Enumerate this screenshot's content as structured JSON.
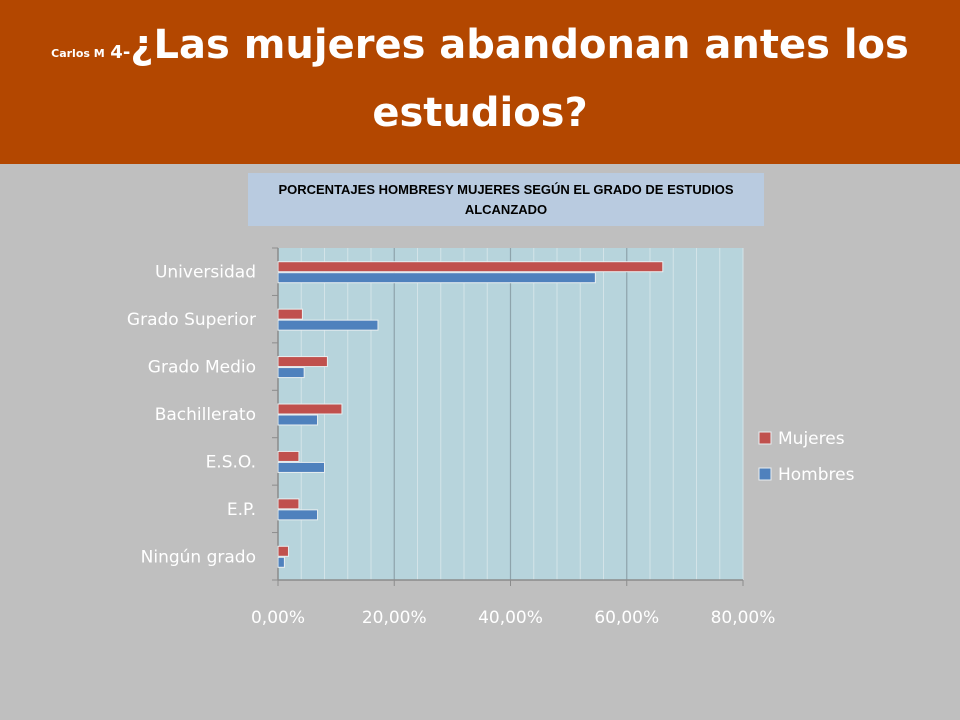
{
  "header": {
    "author": "Carlos M",
    "number": "4-",
    "title_part1": "¿Las mujeres abandonan antes los",
    "title_part2": "estudios?"
  },
  "colors": {
    "header_bg": "#b34700",
    "slide_bg": "#bfbfbf",
    "plot_bg": "#b7d4dc",
    "mujeres": "#c0504d",
    "hombres": "#4f81bd"
  },
  "chart_data": {
    "type": "bar",
    "orientation": "horizontal",
    "title": "PORCENTAJES HOMBRESY MUJERES SEGÚN EL GRADO DE ESTUDIOS ALCANZADO",
    "categories": [
      "Universidad",
      "Grado Superior",
      "Grado Medio",
      "Bachillerato",
      "E.S.O.",
      "E.P.",
      "Ningún grado"
    ],
    "series": [
      {
        "name": "Mujeres",
        "values": [
          66.2,
          4.2,
          8.5,
          11.0,
          3.6,
          3.6,
          1.8
        ]
      },
      {
        "name": "Hombres",
        "values": [
          54.6,
          17.2,
          4.5,
          6.8,
          8.0,
          6.8,
          1.1
        ]
      }
    ],
    "xlim": [
      0,
      80
    ],
    "x_ticks": [
      "0,00%",
      "20,00%",
      "40,00%",
      "60,00%",
      "80,00%"
    ],
    "grid": true,
    "legend_position": "right"
  }
}
